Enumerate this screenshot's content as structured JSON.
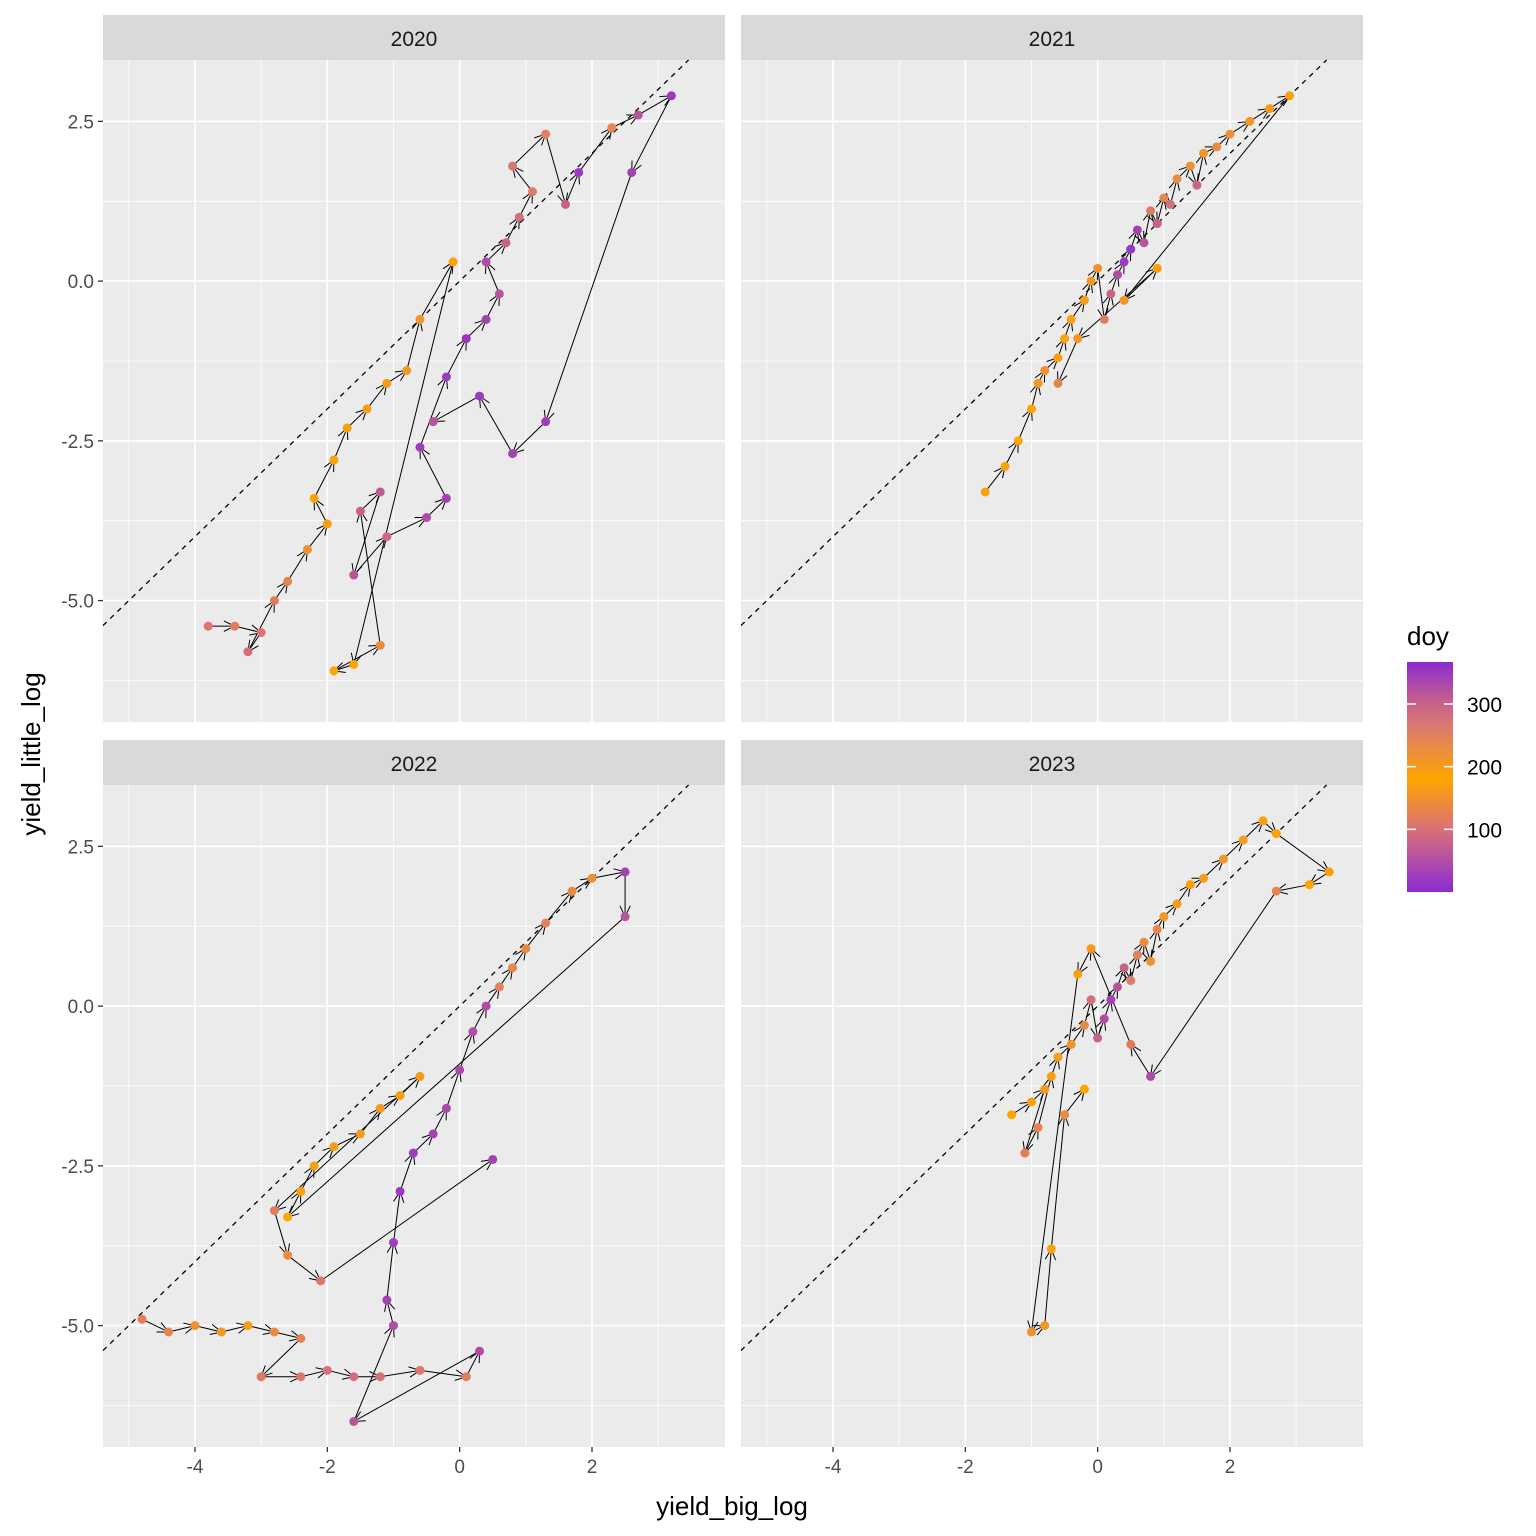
{
  "chart_data": {
    "type": "scatter",
    "xlabel": "yield_big_log",
    "ylabel": "yield_little_log",
    "xlim": [
      -5.39,
      4.01
    ],
    "ylim": [
      -6.9,
      3.46
    ],
    "x_ticks": [
      -4,
      -2,
      0,
      2
    ],
    "x_tick_labels": [
      "-4",
      "-2",
      "0",
      "2"
    ],
    "y_ticks": [
      -5,
      -2.5,
      0,
      2.5
    ],
    "y_tick_labels": [
      "-5.0",
      "-2.5",
      "0.0",
      "2.5"
    ],
    "reference_line": "y = x (dashed)",
    "grid": true,
    "legend": {
      "title": "doy",
      "position": "right",
      "range": [
        0,
        367
      ],
      "ticks": [
        100,
        200,
        300
      ],
      "tick_labels": [
        "100",
        "200",
        "300"
      ],
      "colors": {
        "low": "#8B2BD2",
        "mid": "#FFA500",
        "high": "#8B2BD2",
        "between": "#D8707A"
      }
    },
    "facets": [
      {
        "label": "2020",
        "points": [
          [
            -3.8,
            -5.4,
            110
          ],
          [
            -3.4,
            -5.4,
            120
          ],
          [
            -3.0,
            -5.5,
            105
          ],
          [
            -3.2,
            -5.8,
            95
          ],
          [
            -2.8,
            -5.0,
            115
          ],
          [
            -2.6,
            -4.7,
            130
          ],
          [
            -2.3,
            -4.2,
            150
          ],
          [
            -2.0,
            -3.8,
            170
          ],
          [
            -2.2,
            -3.4,
            175
          ],
          [
            -1.9,
            -2.8,
            185
          ],
          [
            -1.7,
            -2.3,
            190
          ],
          [
            -1.4,
            -2.0,
            195
          ],
          [
            -1.1,
            -1.6,
            200
          ],
          [
            -0.8,
            -1.4,
            205
          ],
          [
            -0.6,
            -0.6,
            210
          ],
          [
            -0.1,
            0.3,
            190
          ],
          [
            -1.6,
            -6.0,
            180
          ],
          [
            -1.9,
            -6.1,
            175
          ],
          [
            -1.2,
            -5.7,
            140
          ],
          [
            -1.5,
            -3.6,
            300
          ],
          [
            -1.2,
            -3.3,
            310
          ],
          [
            -1.6,
            -4.6,
            320
          ],
          [
            -1.1,
            -4.0,
            290
          ],
          [
            -0.5,
            -3.7,
            330
          ],
          [
            -0.2,
            -3.4,
            340
          ],
          [
            -0.6,
            -2.6,
            345
          ],
          [
            -0.2,
            -1.5,
            350
          ],
          [
            0.1,
            -0.9,
            355
          ],
          [
            0.4,
            -0.6,
            340
          ],
          [
            0.6,
            -0.2,
            320
          ],
          [
            0.4,
            0.3,
            330
          ],
          [
            0.7,
            0.6,
            300
          ],
          [
            0.9,
            1.0,
            280
          ],
          [
            1.1,
            1.4,
            260
          ],
          [
            0.8,
            1.8,
            270
          ],
          [
            1.3,
            2.3,
            250
          ],
          [
            1.6,
            1.2,
            300
          ],
          [
            1.8,
            1.7,
            350
          ],
          [
            2.3,
            2.4,
            240
          ],
          [
            2.7,
            2.6,
            320
          ],
          [
            3.2,
            2.9,
            350
          ],
          [
            2.6,
            1.7,
            340
          ],
          [
            1.3,
            -2.2,
            345
          ],
          [
            0.8,
            -2.7,
            340
          ],
          [
            0.3,
            -1.8,
            350
          ],
          [
            -0.4,
            -2.2,
            320
          ]
        ]
      },
      {
        "label": "2021",
        "points": [
          [
            -1.7,
            -3.3,
            190
          ],
          [
            -1.4,
            -2.9,
            185
          ],
          [
            -1.2,
            -2.5,
            180
          ],
          [
            -1.0,
            -2.0,
            175
          ],
          [
            -0.9,
            -1.6,
            160
          ],
          [
            -0.8,
            -1.4,
            150
          ],
          [
            -0.6,
            -1.2,
            170
          ],
          [
            -0.5,
            -0.9,
            185
          ],
          [
            -0.4,
            -0.6,
            190
          ],
          [
            -0.2,
            -0.3,
            200
          ],
          [
            -0.1,
            0.0,
            210
          ],
          [
            0.0,
            0.2,
            220
          ],
          [
            0.1,
            -0.6,
            260
          ],
          [
            0.2,
            -0.2,
            300
          ],
          [
            0.3,
            0.1,
            330
          ],
          [
            0.4,
            0.3,
            350
          ],
          [
            0.5,
            0.5,
            355
          ],
          [
            0.6,
            0.8,
            340
          ],
          [
            0.7,
            0.6,
            320
          ],
          [
            0.8,
            1.1,
            260
          ],
          [
            0.9,
            0.9,
            300
          ],
          [
            1.0,
            1.3,
            240
          ],
          [
            1.1,
            1.2,
            280
          ],
          [
            1.2,
            1.6,
            230
          ],
          [
            1.4,
            1.8,
            220
          ],
          [
            1.5,
            1.5,
            300
          ],
          [
            1.6,
            2.0,
            210
          ],
          [
            1.8,
            2.1,
            230
          ],
          [
            2.0,
            2.3,
            220
          ],
          [
            2.3,
            2.5,
            210
          ],
          [
            2.6,
            2.7,
            200
          ],
          [
            2.9,
            2.9,
            190
          ],
          [
            0.4,
            -0.3,
            210
          ],
          [
            0.9,
            0.2,
            190
          ],
          [
            -0.3,
            -0.9,
            160
          ],
          [
            -0.6,
            -1.6,
            130
          ]
        ]
      },
      {
        "label": "2022",
        "points": [
          [
            -4.8,
            -4.9,
            120
          ],
          [
            -4.4,
            -5.1,
            130
          ],
          [
            -4.0,
            -5.0,
            150
          ],
          [
            -3.6,
            -5.1,
            160
          ],
          [
            -3.2,
            -5.0,
            170
          ],
          [
            -2.8,
            -5.1,
            140
          ],
          [
            -2.4,
            -5.2,
            125
          ],
          [
            -3.0,
            -5.8,
            115
          ],
          [
            -2.4,
            -5.8,
            110
          ],
          [
            -2.0,
            -5.7,
            100
          ],
          [
            -1.6,
            -5.8,
            95
          ],
          [
            -1.2,
            -5.8,
            100
          ],
          [
            -0.6,
            -5.7,
            110
          ],
          [
            0.1,
            -5.8,
            120
          ],
          [
            0.3,
            -5.4,
            330
          ],
          [
            -1.6,
            -6.5,
            320
          ],
          [
            -1.0,
            -5.0,
            330
          ],
          [
            -1.1,
            -4.6,
            340
          ],
          [
            -1.0,
            -3.7,
            345
          ],
          [
            -0.9,
            -2.9,
            350
          ],
          [
            -0.7,
            -2.3,
            345
          ],
          [
            -0.4,
            -2.0,
            340
          ],
          [
            -0.2,
            -1.6,
            335
          ],
          [
            0.0,
            -1.0,
            330
          ],
          [
            0.2,
            -0.4,
            325
          ],
          [
            0.4,
            0.0,
            330
          ],
          [
            0.6,
            0.3,
            250
          ],
          [
            0.8,
            0.6,
            240
          ],
          [
            1.0,
            0.9,
            230
          ],
          [
            1.3,
            1.3,
            250
          ],
          [
            1.7,
            1.8,
            230
          ],
          [
            2.0,
            2.0,
            220
          ],
          [
            2.5,
            2.1,
            340
          ],
          [
            2.5,
            1.4,
            320
          ],
          [
            -2.6,
            -3.3,
            180
          ],
          [
            -2.4,
            -2.9,
            185
          ],
          [
            -2.2,
            -2.5,
            190
          ],
          [
            -1.9,
            -2.2,
            195
          ],
          [
            -1.5,
            -2.0,
            200
          ],
          [
            -1.2,
            -1.6,
            205
          ],
          [
            -0.9,
            -1.4,
            195
          ],
          [
            -0.6,
            -1.1,
            200
          ],
          [
            -2.8,
            -3.2,
            120
          ],
          [
            -2.6,
            -3.9,
            140
          ],
          [
            -2.1,
            -4.3,
            110
          ],
          [
            0.5,
            -2.4,
            340
          ]
        ]
      },
      {
        "label": "2023",
        "points": [
          [
            -1.3,
            -1.7,
            180
          ],
          [
            -1.0,
            -1.5,
            190
          ],
          [
            -0.8,
            -1.3,
            200
          ],
          [
            -1.1,
            -2.3,
            120
          ],
          [
            -0.9,
            -1.9,
            130
          ],
          [
            -0.7,
            -1.1,
            190
          ],
          [
            -0.6,
            -0.8,
            200
          ],
          [
            -0.4,
            -0.6,
            210
          ],
          [
            -0.2,
            -0.3,
            230
          ],
          [
            -0.1,
            0.1,
            280
          ],
          [
            0.0,
            -0.5,
            300
          ],
          [
            0.1,
            -0.2,
            330
          ],
          [
            0.2,
            0.1,
            340
          ],
          [
            0.3,
            0.3,
            320
          ],
          [
            0.4,
            0.6,
            300
          ],
          [
            0.5,
            0.4,
            260
          ],
          [
            0.6,
            0.8,
            250
          ],
          [
            0.7,
            1.0,
            230
          ],
          [
            0.8,
            0.7,
            220
          ],
          [
            0.9,
            1.2,
            240
          ],
          [
            1.0,
            1.4,
            210
          ],
          [
            1.2,
            1.6,
            200
          ],
          [
            1.4,
            1.9,
            190
          ],
          [
            1.6,
            2.0,
            200
          ],
          [
            1.9,
            2.3,
            210
          ],
          [
            2.2,
            2.6,
            200
          ],
          [
            2.5,
            2.9,
            190
          ],
          [
            2.7,
            2.7,
            185
          ],
          [
            3.5,
            2.1,
            190
          ],
          [
            3.2,
            1.9,
            180
          ],
          [
            2.7,
            1.8,
            130
          ],
          [
            0.8,
            -1.1,
            330
          ],
          [
            0.5,
            -0.6,
            120
          ],
          [
            -0.1,
            0.9,
            200
          ],
          [
            -0.3,
            0.5,
            190
          ],
          [
            -1.0,
            -5.1,
            150
          ],
          [
            -0.8,
            -5.0,
            160
          ],
          [
            -0.7,
            -3.8,
            170
          ],
          [
            -0.5,
            -1.7,
            140
          ],
          [
            -0.2,
            -1.3,
            180
          ]
        ]
      }
    ]
  }
}
